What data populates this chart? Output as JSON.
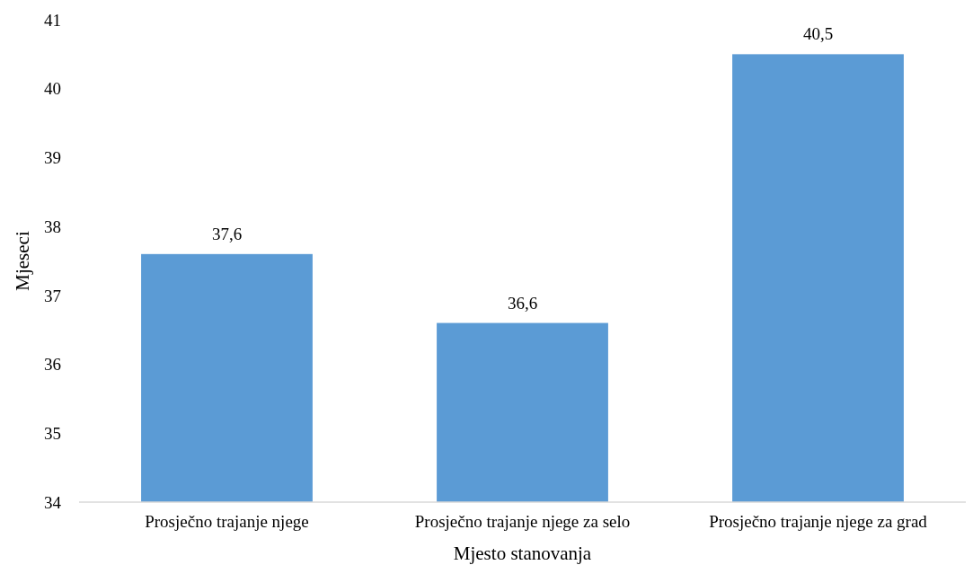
{
  "chart_data": {
    "type": "bar",
    "xlabel": "Mjesto stanovanja",
    "ylabel": "Mjeseci",
    "categories": [
      "Prosječno trajanje njege",
      "Prosječno trajanje njege za selo",
      "Prosječno trajanje njege za grad"
    ],
    "values": [
      37.6,
      36.6,
      40.5
    ],
    "color": "#5b9bd5",
    "value_labels": [
      "37,6",
      "36,6",
      "40,5"
    ],
    "ylim": [
      34,
      41
    ],
    "yticks": [
      34,
      35,
      36,
      37,
      38,
      39,
      40,
      41
    ],
    "grid": false
  }
}
